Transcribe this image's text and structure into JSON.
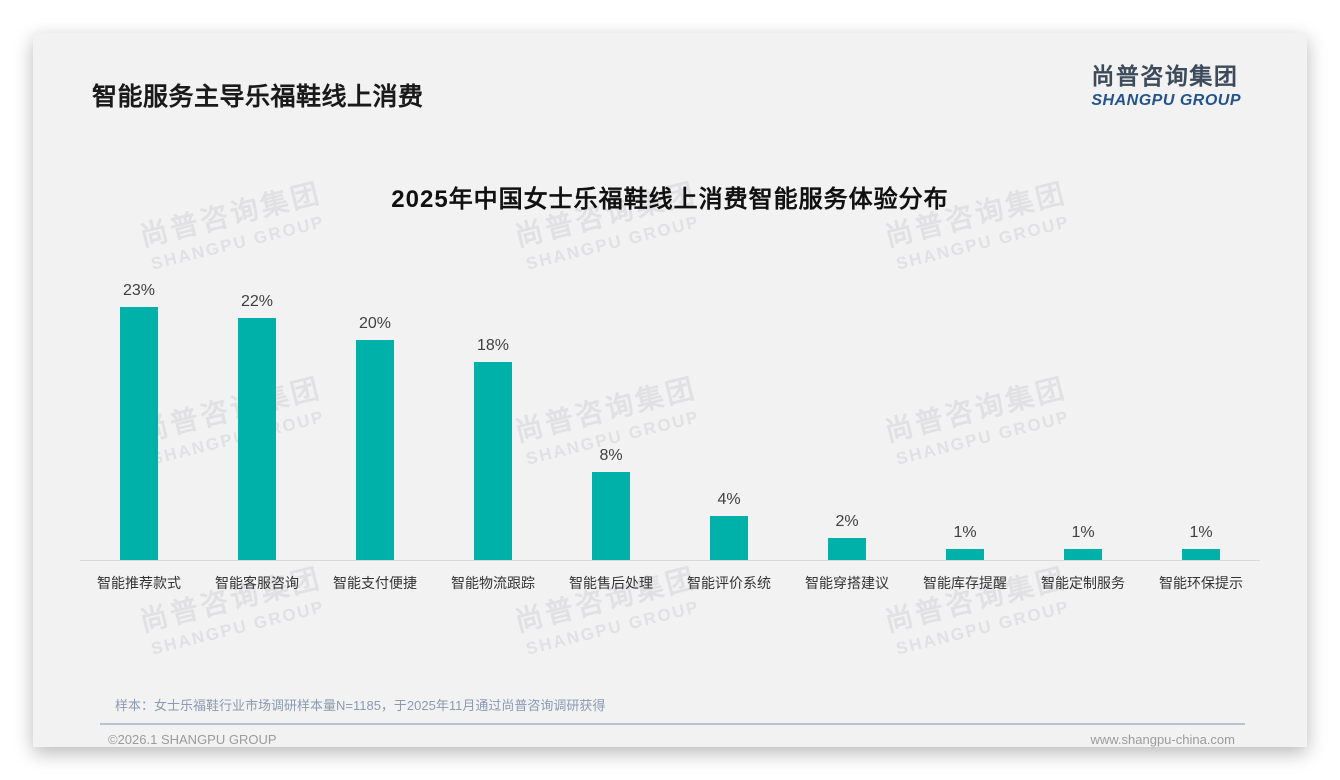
{
  "page": {
    "title": "智能服务主导乐福鞋线上消费",
    "logo": {
      "cn": "尚普咨询集团",
      "en": "SHANGPU GROUP"
    },
    "watermark": {
      "cn": "尚普咨询集团",
      "en": "SHANGPU GROUP"
    },
    "footnote": "样本：女士乐福鞋行业市场调研样本量N=1185，于2025年11月通过尚普咨询调研获得",
    "footer": {
      "copyright": "©2026.1 SHANGPU GROUP",
      "website": "www.shangpu-china.com"
    },
    "colors": {
      "accent_teal": "#00b1a9",
      "logo_blue": "#23538c",
      "logo_dark": "#3d4a5a"
    }
  },
  "chart_data": {
    "type": "bar",
    "title": "2025年中国女士乐福鞋线上消费智能服务体验分布",
    "categories": [
      "智能推荐款式",
      "智能客服咨询",
      "智能支付便捷",
      "智能物流跟踪",
      "智能售后处理",
      "智能评价系统",
      "智能穿搭建议",
      "智能库存提醒",
      "智能定制服务",
      "智能环保提示"
    ],
    "values": [
      23,
      22,
      20,
      18,
      8,
      4,
      2,
      1,
      1,
      1
    ],
    "value_labels": [
      "23%",
      "22%",
      "20%",
      "18%",
      "8%",
      "4%",
      "2%",
      "1%",
      "1%",
      "1%"
    ],
    "xlabel": "",
    "ylabel": "",
    "unit": "%",
    "ylim": [
      0,
      25
    ],
    "grid": false,
    "legend": false,
    "bar_color": "#00b1a9"
  }
}
